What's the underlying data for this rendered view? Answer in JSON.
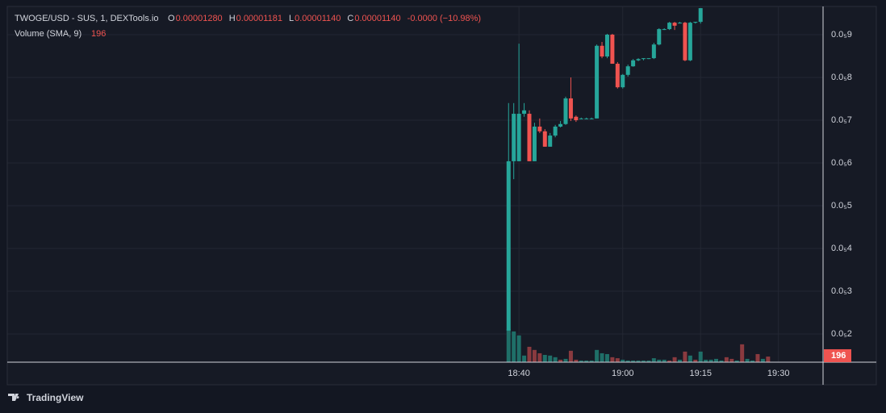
{
  "chart_data": {
    "type": "candlestick",
    "title": "TWOGE/USD - SUS, 1, DEXTools.io",
    "ohlc_labels": [
      {
        "key": "O",
        "text": "0.00001280"
      },
      {
        "key": "H",
        "text": "0.00001181"
      },
      {
        "key": "L",
        "text": "0.00001140"
      },
      {
        "key": "C",
        "text": "0.00001140"
      }
    ],
    "change_label": "-0.0000 (−10.98%)",
    "volume_label": "Volume (SMA, 9)",
    "volume_sma_value": 196,
    "brand": "TradingView",
    "up_color": "#26a69a",
    "down_color": "#ef5350",
    "grid": true,
    "x": [
      1118,
      1119,
      1120,
      1121,
      1122,
      1123,
      1124,
      1125,
      1126,
      1127,
      1128,
      1129,
      1130,
      1131,
      1132,
      1133,
      1134,
      1135,
      1136,
      1137,
      1138,
      1139,
      1140,
      1141,
      1142,
      1143,
      1144,
      1145,
      1146,
      1147,
      1148,
      1149,
      1150,
      1151,
      1152,
      1153,
      1154,
      1155,
      1156,
      1157,
      1158,
      1159,
      1160,
      1161,
      1162,
      1163,
      1164,
      1165,
      1166,
      1167,
      1168
    ],
    "open": [
      2.08e-06,
      6.04e-06,
      6.04e-06,
      7.15e-06,
      7.15e-06,
      6.04e-06,
      6.85e-06,
      6.74e-06,
      6.38e-06,
      6.64e-06,
      6.85e-06,
      6.91e-06,
      7.51e-06,
      7.08e-06,
      7.04e-06,
      7.04e-06,
      7.04e-06,
      7.04e-06,
      8.74e-06,
      8.49e-06,
      9e-06,
      8.32e-06,
      7.77e-06,
      8.06e-06,
      8.26e-06,
      8.4e-06,
      8.43e-06,
      8.45e-06,
      8.45e-06,
      8.77e-06,
      9.13e-06,
      9.13e-06,
      9.28e-06,
      9.28e-06,
      9.28e-06,
      8.4e-06,
      9.28e-06,
      9.3e-06,
      null,
      null,
      null,
      null,
      null,
      null,
      null,
      null,
      null,
      null,
      null,
      null,
      null
    ],
    "high": [
      7.4e-06,
      7.4e-06,
      8.79e-06,
      7.4e-06,
      7.23e-06,
      6.94e-06,
      7.04e-06,
      6.79e-06,
      6.7e-06,
      6.89e-06,
      6.98e-06,
      7.55e-06,
      8e-06,
      7.11e-06,
      7.06e-06,
      7.06e-06,
      7.06e-06,
      8.77e-06,
      8.83e-06,
      9.02e-06,
      9.02e-06,
      8.36e-06,
      8.08e-06,
      8.3e-06,
      8.43e-06,
      8.45e-06,
      8.45e-06,
      8.45e-06,
      8.81e-06,
      9.15e-06,
      9.15e-06,
      9.3e-06,
      9.3e-06,
      9.3e-06,
      9.3e-06,
      9.3e-06,
      9.3e-06,
      9.62e-06,
      null,
      null,
      null,
      null,
      null,
      null,
      null,
      null,
      null,
      null,
      null,
      null,
      null
    ],
    "low": [
      2.08e-06,
      5.62e-06,
      6.04e-06,
      7.08e-06,
      6.04e-06,
      6.04e-06,
      6.7e-06,
      6.38e-06,
      6.38e-06,
      6.6e-06,
      6.83e-06,
      6.89e-06,
      6.98e-06,
      6.96e-06,
      7.02e-06,
      7.02e-06,
      7.02e-06,
      7.04e-06,
      8.45e-06,
      8.45e-06,
      8.32e-06,
      7.74e-06,
      7.74e-06,
      8.02e-06,
      8.25e-06,
      8.38e-06,
      8.4e-06,
      8.43e-06,
      8.43e-06,
      8.75e-06,
      9.11e-06,
      9.11e-06,
      9.11e-06,
      9.26e-06,
      8.38e-06,
      8.38e-06,
      9.26e-06,
      9.26e-06,
      null,
      null,
      null,
      null,
      null,
      null,
      null,
      null,
      null,
      null,
      null,
      null,
      null
    ],
    "close": [
      6.04e-06,
      7.15e-06,
      7.15e-06,
      7.23e-06,
      6.04e-06,
      6.85e-06,
      6.74e-06,
      6.38e-06,
      6.64e-06,
      6.85e-06,
      6.91e-06,
      7.51e-06,
      7.04e-06,
      7e-06,
      7.04e-06,
      7.04e-06,
      7.04e-06,
      8.74e-06,
      8.49e-06,
      9e-06,
      8.32e-06,
      7.77e-06,
      8.06e-06,
      8.26e-06,
      8.4e-06,
      8.43e-06,
      8.45e-06,
      8.45e-06,
      8.77e-06,
      9.13e-06,
      9.13e-06,
      9.28e-06,
      9.21e-06,
      9.28e-06,
      8.4e-06,
      9.28e-06,
      9.3e-06,
      9.62e-06,
      null,
      null,
      null,
      null,
      null,
      null,
      null,
      null,
      null,
      null,
      null,
      null,
      null
    ],
    "volume": [
      1000,
      930,
      810,
      200,
      465,
      370,
      270,
      220,
      200,
      150,
      75,
      100,
      345,
      75,
      50,
      50,
      50,
      370,
      270,
      245,
      150,
      120,
      75,
      50,
      50,
      50,
      50,
      50,
      120,
      75,
      75,
      50,
      150,
      75,
      320,
      200,
      75,
      320,
      75,
      75,
      100,
      50,
      150,
      100,
      50,
      540,
      100,
      50,
      245,
      100,
      170
    ],
    "volume_colors": [
      "#1f6f68",
      "#1f6f68",
      "#1f6f68",
      "#1f6f68",
      "#8a3a3f",
      "#8a3a3f",
      "#8a3a3f",
      "#1f6f68",
      "#1f6f68",
      "#1f6f68",
      "#8a3a3f",
      "#1f6f68",
      "#8a3a3f",
      "#8a3a3f",
      "#1f6f68",
      "#1f6f68",
      "#1f6f68",
      "#1f6f68",
      "#1f6f68",
      "#1f6f68",
      "#8a3a3f",
      "#8a3a3f",
      "#1f6f68",
      "#1f6f68",
      "#1f6f68",
      "#1f6f68",
      "#1f6f68",
      "#1f6f68",
      "#1f6f68",
      "#1f6f68",
      "#1f6f68",
      "#8a3a3f",
      "#8a3a3f",
      "#1f6f68",
      "#8a3a3f",
      "#1f6f68",
      "#8a3a3f",
      "#1f6f68",
      "#1f6f68",
      "#1f6f68",
      "#1f6f68",
      "#1f6f68",
      "#8a3a3f",
      "#8a3a3f",
      "#1f6f68",
      "#8a3a3f",
      "#1f6f68",
      "#1f6f68",
      "#8a3a3f",
      "#1f6f68",
      "#8a3a3f"
    ],
    "volume_lim": [
      0,
      1000
    ],
    "xlim": [
      1021.4,
      1178.6
    ],
    "xticks": [
      {
        "value": 1120,
        "label": "18:40"
      },
      {
        "value": 1140,
        "label": "19:00"
      },
      {
        "value": 1155,
        "label": "19:15"
      },
      {
        "value": 1170,
        "label": "19:30"
      }
    ],
    "ylim": [
      1.34e-06,
      9.66e-06
    ],
    "yticks": [
      {
        "value": 2e-06,
        "label": "0.0₅2"
      },
      {
        "value": 3e-06,
        "label": "0.0₅3"
      },
      {
        "value": 4e-06,
        "label": "0.0₅4"
      },
      {
        "value": 5e-06,
        "label": "0.0₅5"
      },
      {
        "value": 6e-06,
        "label": "0.0₅6"
      },
      {
        "value": 7e-06,
        "label": "0.0₅7"
      },
      {
        "value": 8e-06,
        "label": "0.0₅8"
      },
      {
        "value": 9e-06,
        "label": "0.0₅9"
      }
    ]
  }
}
